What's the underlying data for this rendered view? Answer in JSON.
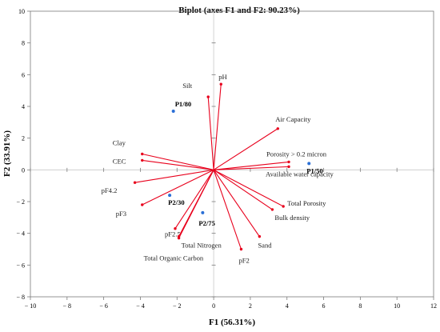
{
  "chart_data": {
    "type": "scatter",
    "title": "Biplot  (axes F1 and  F2: 90.23%)",
    "xlabel": "F1 (56.31%)",
    "ylabel": "F2 (33.91%)",
    "xlim": [
      -10,
      12
    ],
    "ylim": [
      -8,
      10
    ],
    "xticks": [
      -10,
      -8,
      -6,
      -4,
      -2,
      0,
      2,
      4,
      6,
      8,
      10,
      12
    ],
    "yticks": [
      -8,
      -6,
      -4,
      -2,
      0,
      2,
      4,
      6,
      8,
      10
    ],
    "xtick_labels": [
      "− 10",
      "− 8",
      "− 6",
      "− 4",
      "− 2",
      "0",
      "2",
      "4",
      "6",
      "8",
      "10",
      "12"
    ],
    "ytick_labels": [
      "− 8",
      "− 6",
      "− 4",
      "− 2",
      "0",
      "2",
      "4",
      "6",
      "8",
      "10"
    ],
    "grid": false,
    "variables": [
      {
        "label": "pH",
        "x": 0.4,
        "y": 5.4
      },
      {
        "label": "Silt",
        "x": -0.3,
        "y": 4.6
      },
      {
        "label": "Air Capacity",
        "x": 3.5,
        "y": 2.6
      },
      {
        "label": "Clay",
        "x": -3.9,
        "y": 1.0
      },
      {
        "label": "CEC",
        "x": -3.9,
        "y": 0.6
      },
      {
        "label": "Porosity > 0.2 micron",
        "x": 4.1,
        "y": 0.5
      },
      {
        "label": "Available water capacity",
        "x": 4.1,
        "y": 0.2
      },
      {
        "label": "pF4.2",
        "x": -4.3,
        "y": -0.8
      },
      {
        "label": "pF3",
        "x": -3.9,
        "y": -2.2
      },
      {
        "label": "Total Porosity",
        "x": 3.8,
        "y": -2.3
      },
      {
        "label": "Bulk density",
        "x": 3.2,
        "y": -2.5
      },
      {
        "label": "pF2.5",
        "x": -2.1,
        "y": -3.7
      },
      {
        "label": "Total Nitrogen",
        "x": -1.9,
        "y": -4.2
      },
      {
        "label": "Total Organic Carbon",
        "x": -1.9,
        "y": -4.3
      },
      {
        "label": "Sand",
        "x": 2.5,
        "y": -4.2
      },
      {
        "label": "pF2",
        "x": 1.5,
        "y": -5.0
      }
    ],
    "observations": [
      {
        "label": "P1/80",
        "x": -2.2,
        "y": 3.7
      },
      {
        "label": "P1/50",
        "x": 5.2,
        "y": 0.4
      },
      {
        "label": "P2/30",
        "x": -2.4,
        "y": -1.6
      },
      {
        "label": "P2/75",
        "x": -0.6,
        "y": -2.7
      }
    ]
  }
}
